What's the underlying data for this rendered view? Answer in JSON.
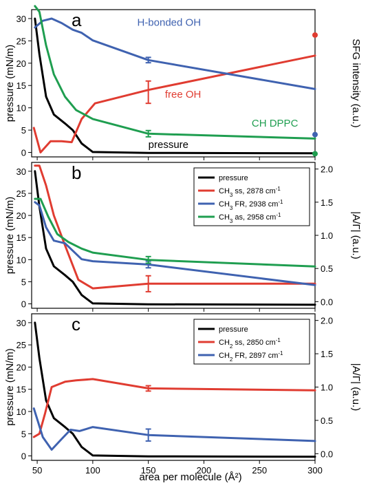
{
  "figure": {
    "x_label": "area per molecule (Å²)",
    "x_ticks": [
      50,
      100,
      150,
      200,
      250,
      300
    ]
  },
  "chart_data": [
    {
      "type": "line",
      "panel_letter": "a",
      "xlim": [
        45,
        300
      ],
      "left_axis": {
        "label": "pressure (mN/m)",
        "ylim": [
          -1,
          32
        ],
        "ticks": [
          0,
          5,
          10,
          15,
          20,
          25,
          30
        ]
      },
      "right_axis": {
        "label": "SFG intensity (a.u.)"
      },
      "legend": null,
      "series": [
        {
          "name": "pressure",
          "color": "#000000",
          "axis": "left",
          "x": [
            48,
            52,
            58,
            65,
            75,
            82,
            90,
            100,
            150,
            300
          ],
          "y": [
            30,
            22,
            12.5,
            8.5,
            6.5,
            5.0,
            2.0,
            0.1,
            -0.1,
            -0.2
          ]
        },
        {
          "name": "free OH",
          "color": "#e03c31",
          "axis": "left",
          "x": [
            47,
            53,
            62,
            72,
            81,
            90,
            102,
            150,
            300
          ],
          "y": [
            5.5,
            0,
            2.5,
            2.5,
            2.3,
            7.5,
            11.0,
            14.0,
            21.7
          ],
          "error_bars": [
            {
              "x": 150,
              "y": 13.5,
              "err": 2.5
            }
          ]
        },
        {
          "name": "H-bonded OH",
          "color": "#3f62b0",
          "axis": "left",
          "x": [
            48,
            55,
            63,
            72,
            82,
            90,
            100,
            150,
            300
          ],
          "y": [
            28,
            29.5,
            30,
            29,
            27.5,
            26.8,
            25.1,
            20.7,
            14.2
          ],
          "error_bars": [
            {
              "x": 150,
              "y": 20.7,
              "err": 0.6
            }
          ]
        },
        {
          "name": "CH DPPC",
          "color": "#1f9e50",
          "axis": "left",
          "x": [
            48,
            52,
            58,
            65,
            75,
            85,
            100,
            150,
            300
          ],
          "y": [
            32.8,
            31.5,
            24.0,
            17.5,
            12.5,
            9.5,
            7.5,
            4.2,
            3.1
          ],
          "error_bars": [
            {
              "x": 150,
              "y": 4.2,
              "err": 0.7
            }
          ]
        }
      ],
      "markers": [
        {
          "x": 300,
          "y": 26.3,
          "color": "#e03c31"
        },
        {
          "x": 300,
          "y": 4.0,
          "color": "#3f62b0"
        },
        {
          "x": 300,
          "y": -0.3,
          "color": "#1f9e50"
        }
      ],
      "annotations": [
        {
          "text": "H-bonded OH",
          "x": 140,
          "y": 28.4,
          "color": "#3f62b0"
        },
        {
          "text": "free OH",
          "x": 165,
          "y": 12.3,
          "color": "#e03c31"
        },
        {
          "text": "CH DPPC",
          "x": 243,
          "y": 5.8,
          "color": "#1f9e50"
        },
        {
          "text": "pressure",
          "x": 150,
          "y": 1.0,
          "color": "#000000"
        }
      ]
    },
    {
      "type": "line",
      "panel_letter": "b",
      "xlim": [
        45,
        300
      ],
      "left_axis": {
        "label": "pressure (mN/m)",
        "ylim": [
          -1,
          32
        ],
        "ticks": [
          0,
          5,
          10,
          15,
          20,
          25,
          30
        ]
      },
      "right_axis": {
        "label": "|A/Γ| (a.u.)",
        "ylim": [
          -0.1,
          2.1
        ],
        "ticks": [
          0.0,
          0.5,
          1.0,
          1.5,
          2.0
        ],
        "tick_labels": [
          "0.0",
          "0.5",
          "1.0",
          "1.5",
          "2.0"
        ]
      },
      "legend": {
        "placement": "top-right",
        "entries": [
          {
            "name": "pressure",
            "sub": "",
            "suffix": "",
            "sup": ""
          },
          {
            "name": "CH",
            "sub": "3",
            "suffix": " ss, 2878 cm",
            "sup": "-1"
          },
          {
            "name": "CH",
            "sub": "3",
            "suffix": " FR, 2938 cm",
            "sup": "-1"
          },
          {
            "name": "CH",
            "sub": "3",
            "suffix": " as, 2958 cm",
            "sup": "-1"
          }
        ]
      },
      "series": [
        {
          "name": "pressure",
          "color": "#000000",
          "axis": "left",
          "x": [
            48,
            52,
            58,
            65,
            75,
            82,
            90,
            100,
            150,
            300
          ],
          "y": [
            30,
            22,
            12.5,
            8.5,
            6.5,
            5.0,
            2.0,
            0.1,
            -0.1,
            -0.2
          ]
        },
        {
          "name": "CH3 ss, 2878 cm-1",
          "color": "#e03c31",
          "axis": "right",
          "x": [
            48,
            52,
            58,
            65,
            75,
            87,
            100,
            150,
            300
          ],
          "y": [
            2.05,
            2.05,
            1.75,
            1.3,
            0.85,
            0.33,
            0.2,
            0.27,
            0.27
          ],
          "error_bars": [
            {
              "x": 150,
              "y": 0.27,
              "err": 0.12
            }
          ]
        },
        {
          "name": "CH3 FR, 2938 cm-1",
          "color": "#3f62b0",
          "axis": "right",
          "x": [
            48,
            52,
            58,
            65,
            75,
            90,
            100,
            150,
            300
          ],
          "y": [
            1.5,
            1.45,
            1.12,
            0.92,
            0.88,
            0.64,
            0.61,
            0.56,
            0.25
          ],
          "error_bars": [
            {
              "x": 150,
              "y": 0.56,
              "err": 0.05
            }
          ]
        },
        {
          "name": "CH3 as, 2958 cm-1",
          "color": "#1f9e50",
          "axis": "right",
          "x": [
            48,
            53,
            60,
            68,
            78,
            90,
            100,
            150,
            300
          ],
          "y": [
            1.55,
            1.55,
            1.28,
            1.02,
            0.9,
            0.8,
            0.74,
            0.63,
            0.53
          ],
          "error_bars": [
            {
              "x": 150,
              "y": 0.63,
              "err": 0.05
            }
          ]
        }
      ]
    },
    {
      "type": "line",
      "panel_letter": "c",
      "xlim": [
        45,
        300
      ],
      "left_axis": {
        "label": "pressure (mN/m)",
        "ylim": [
          -1,
          32
        ],
        "ticks": [
          0,
          5,
          10,
          15,
          20,
          25,
          30
        ]
      },
      "right_axis": {
        "label": "|A/Γ| (a.u.)",
        "ylim": [
          -0.1,
          2.1
        ],
        "ticks": [
          0.0,
          0.5,
          1.0,
          1.5,
          2.0
        ],
        "tick_labels": [
          "0.0",
          "0.5",
          "1.0",
          "1.5",
          "2.0"
        ]
      },
      "legend": {
        "placement": "top-right",
        "entries": [
          {
            "name": "pressure",
            "sub": "",
            "suffix": "",
            "sup": ""
          },
          {
            "name": "CH",
            "sub": "2",
            "suffix": " ss, 2850 cm",
            "sup": "-1"
          },
          {
            "name": "CH",
            "sub": "2",
            "suffix": " FR, 2897 cm",
            "sup": "-1"
          }
        ]
      },
      "series": [
        {
          "name": "pressure",
          "color": "#000000",
          "axis": "left",
          "x": [
            48,
            52,
            58,
            65,
            75,
            82,
            90,
            100,
            150,
            300
          ],
          "y": [
            30,
            22,
            12.5,
            8.5,
            6.5,
            5.0,
            2.0,
            0.1,
            -0.1,
            -0.2
          ]
        },
        {
          "name": "CH2 ss, 2850 cm-1",
          "color": "#e03c31",
          "axis": "right",
          "x": [
            47,
            52,
            57,
            63,
            75,
            85,
            100,
            150,
            300
          ],
          "y": [
            0.25,
            0.3,
            0.6,
            1.0,
            1.08,
            1.1,
            1.12,
            0.98,
            0.95
          ],
          "error_bars": [
            {
              "x": 150,
              "y": 0.98,
              "err": 0.04
            }
          ]
        },
        {
          "name": "CH2 FR, 2897 cm-1",
          "color": "#3f62b0",
          "axis": "right",
          "x": [
            47,
            55,
            63,
            72,
            80,
            88,
            100,
            150,
            300
          ],
          "y": [
            0.68,
            0.25,
            0.06,
            0.22,
            0.36,
            0.34,
            0.4,
            0.28,
            0.19
          ],
          "error_bars": [
            {
              "x": 150,
              "y": 0.28,
              "err": 0.09
            }
          ]
        }
      ]
    }
  ]
}
